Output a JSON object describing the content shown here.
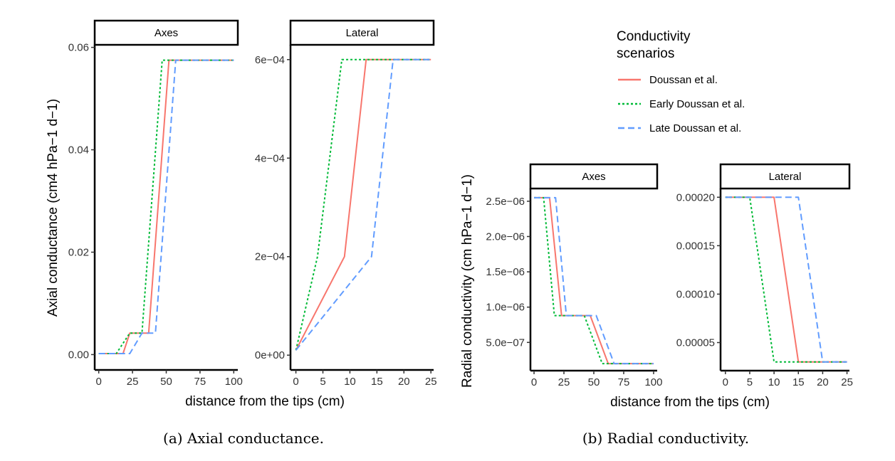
{
  "figure_a": {
    "caption": "(a) Axial conductance.",
    "y_title": "Axial conductance (cm4 hPa−1 d−1)",
    "x_title": "distance from the tips (cm)"
  },
  "figure_b": {
    "caption": "(b) Radial conductivity.",
    "y_title": "Radial conductivity (cm hPa−1 d−1)",
    "x_title": "distance from the tips (cm)"
  },
  "legend": {
    "title_line1": "Conductivity",
    "title_line2": "scenarios",
    "items": [
      {
        "label": "Doussan et al.",
        "color": "#F8766D",
        "dash": "solid"
      },
      {
        "label": "Early Doussan et al.",
        "color": "#00BA38",
        "dash": "dotted"
      },
      {
        "label": "Late Doussan et al.",
        "color": "#619CFF",
        "dash": "dashed"
      }
    ]
  },
  "chart_data": [
    {
      "type": "line",
      "panel": "Axes",
      "figure": "a",
      "xlim": [
        -3,
        103
      ],
      "ylim": [
        -0.003,
        0.0605
      ],
      "x_ticks": [
        0,
        25,
        50,
        75,
        100
      ],
      "x_tick_labels": [
        "0",
        "25",
        "50",
        "75",
        "100"
      ],
      "y_ticks": [
        0,
        0.02,
        0.04,
        0.06
      ],
      "y_tick_labels": [
        "0.00",
        "0.02",
        "0.04",
        "0.06"
      ],
      "series": [
        {
          "name": "Doussan et al.",
          "x": [
            0,
            18,
            23,
            37,
            52,
            100
          ],
          "y": [
            0.0002,
            0.0002,
            0.0042,
            0.0042,
            0.0575,
            0.0575
          ]
        },
        {
          "name": "Early Doussan et al.",
          "x": [
            0,
            13,
            23,
            32,
            47,
            100
          ],
          "y": [
            0.0002,
            0.0002,
            0.0042,
            0.0042,
            0.0575,
            0.0575
          ]
        },
        {
          "name": "Late Doussan et al.",
          "x": [
            0,
            23,
            32,
            42,
            57,
            100
          ],
          "y": [
            0.0002,
            0.0002,
            0.0042,
            0.0042,
            0.0575,
            0.0575
          ]
        }
      ]
    },
    {
      "type": "line",
      "panel": "Lateral",
      "figure": "a",
      "xlim": [
        -1,
        25.5
      ],
      "ylim": [
        -3e-05,
        0.00063
      ],
      "x_ticks": [
        0,
        5,
        10,
        15,
        20,
        25
      ],
      "x_tick_labels": [
        "0",
        "5",
        "10",
        "15",
        "20",
        "25"
      ],
      "y_ticks": [
        0,
        0.0002,
        0.0004,
        0.0006
      ],
      "y_tick_labels": [
        "0e+00",
        "2e−04",
        "4e−04",
        "6e−04"
      ],
      "series": [
        {
          "name": "Doussan et al.",
          "x": [
            0,
            9,
            13,
            25
          ],
          "y": [
            1e-05,
            0.0002,
            0.0006,
            0.0006
          ]
        },
        {
          "name": "Early Doussan et al.",
          "x": [
            0,
            4,
            8.5,
            25
          ],
          "y": [
            1e-05,
            0.0002,
            0.0006,
            0.0006
          ]
        },
        {
          "name": "Late Doussan et al.",
          "x": [
            0,
            14,
            18,
            25
          ],
          "y": [
            1e-05,
            0.0002,
            0.0006,
            0.0006
          ]
        }
      ]
    },
    {
      "type": "line",
      "panel": "Axes",
      "figure": "b",
      "xlim": [
        -3,
        103
      ],
      "ylim": [
        1e-07,
        2.68e-06
      ],
      "x_ticks": [
        0,
        25,
        50,
        75,
        100
      ],
      "x_tick_labels": [
        "0",
        "25",
        "50",
        "75",
        "100"
      ],
      "y_ticks": [
        5e-07,
        1e-06,
        1.5e-06,
        2e-06,
        2.5e-06
      ],
      "y_tick_labels": [
        "5.0e−07",
        "1.0e−06",
        "1.5e−06",
        "2.0e−06",
        "2.5e−06"
      ],
      "series": [
        {
          "name": "Doussan et al.",
          "x": [
            0,
            13,
            23,
            47,
            62,
            100
          ],
          "y": [
            2.55e-06,
            2.55e-06,
            8.8e-07,
            8.8e-07,
            2e-07,
            2e-07
          ]
        },
        {
          "name": "Early Doussan et al.",
          "x": [
            0,
            8,
            17,
            42,
            57,
            100
          ],
          "y": [
            2.55e-06,
            2.55e-06,
            8.8e-07,
            8.8e-07,
            2e-07,
            2e-07
          ]
        },
        {
          "name": "Late Doussan et al.",
          "x": [
            0,
            18,
            27,
            52,
            67,
            100
          ],
          "y": [
            2.55e-06,
            2.55e-06,
            8.8e-07,
            8.8e-07,
            2e-07,
            2e-07
          ]
        }
      ]
    },
    {
      "type": "line",
      "panel": "Lateral",
      "figure": "b",
      "xlim": [
        -1,
        25.5
      ],
      "ylim": [
        2.1e-05,
        0.000209
      ],
      "x_ticks": [
        0,
        5,
        10,
        15,
        20,
        25
      ],
      "x_tick_labels": [
        "0",
        "5",
        "10",
        "15",
        "20",
        "25"
      ],
      "y_ticks": [
        5e-05,
        0.0001,
        0.00015,
        0.0002
      ],
      "y_tick_labels": [
        "0.00005",
        "0.00010",
        "0.00015",
        "0.00020"
      ],
      "series": [
        {
          "name": "Doussan et al.",
          "x": [
            0,
            10,
            15,
            25
          ],
          "y": [
            0.0002,
            0.0002,
            3e-05,
            3e-05
          ]
        },
        {
          "name": "Early Doussan et al.",
          "x": [
            0,
            5,
            10,
            25
          ],
          "y": [
            0.0002,
            0.0002,
            3e-05,
            3e-05
          ]
        },
        {
          "name": "Late Doussan et al.",
          "x": [
            0,
            15,
            20,
            25
          ],
          "y": [
            0.0002,
            0.0002,
            3e-05,
            3e-05
          ]
        }
      ]
    }
  ]
}
